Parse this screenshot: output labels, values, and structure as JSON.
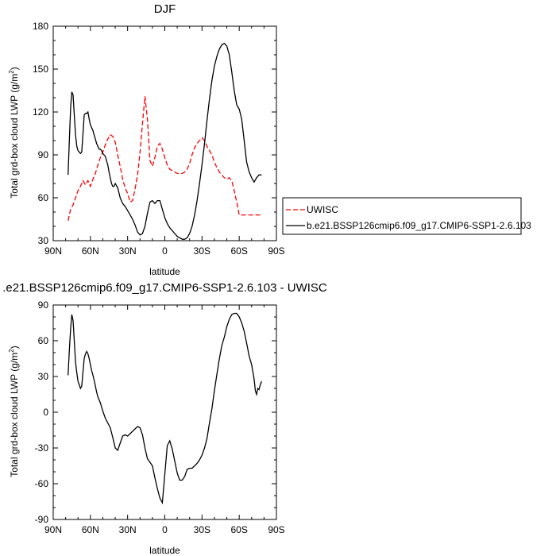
{
  "chart_data": [
    {
      "type": "line",
      "title": "DJF",
      "xlabel": "latitude",
      "ylabel_main": "Total grd-box cloud LWP (g/m",
      "ylabel_sup": "2",
      "ylabel_end": ")",
      "xlim": [
        90,
        -90
      ],
      "ylim": [
        30,
        180
      ],
      "x_ticks": [
        90,
        60,
        30,
        0,
        -30,
        -60,
        -90
      ],
      "x_tick_labels": [
        "90N",
        "60N",
        "30N",
        "0",
        "30S",
        "60S",
        "90S"
      ],
      "y_ticks": [
        30,
        60,
        90,
        120,
        150,
        180
      ],
      "y_tick_labels": [
        "30",
        "60",
        "90",
        "120",
        "150",
        "180"
      ],
      "legend_position": "right",
      "series": [
        {
          "name": "UWISC",
          "color": "#ff0000",
          "dash": "dashed",
          "x": [
            78,
            76,
            74,
            72,
            70,
            68,
            66,
            64,
            62,
            60,
            58,
            56,
            54,
            52,
            50,
            48,
            46,
            44,
            42,
            40,
            38,
            36,
            34,
            32,
            30,
            28,
            26,
            24,
            22,
            20,
            18,
            16,
            14,
            12,
            10,
            8,
            6,
            4,
            2,
            0,
            -2,
            -4,
            -6,
            -8,
            -10,
            -12,
            -14,
            -16,
            -18,
            -20,
            -22,
            -24,
            -26,
            -28,
            -30,
            -32,
            -34,
            -36,
            -38,
            -40,
            -42,
            -44,
            -46,
            -48,
            -50,
            -52,
            -54,
            -56,
            -58,
            -60,
            -62,
            -64,
            -66,
            -68,
            -70,
            -72,
            -74,
            -76,
            -78
          ],
          "y": [
            44,
            52,
            55,
            60,
            65,
            68,
            72,
            69,
            72,
            68,
            73,
            77,
            83,
            88,
            92,
            97,
            101,
            104,
            103,
            99,
            90,
            82,
            73,
            67,
            63,
            57,
            58,
            66,
            76,
            92,
            112,
            131,
            115,
            86,
            82,
            88,
            96,
            98,
            94,
            88,
            83,
            80,
            79,
            78,
            77,
            77,
            77,
            78,
            80,
            84,
            90,
            95,
            98,
            100,
            102,
            100,
            96,
            93,
            90,
            85,
            81,
            78,
            76,
            74,
            73,
            74,
            72,
            65,
            57,
            48,
            48,
            48,
            48,
            48,
            48,
            48,
            48,
            48,
            48
          ]
        },
        {
          "name": "b.e21.BSSP126cmip6.f09_g17.CMIP6-SSP1-2.6.103",
          "color": "#000000",
          "dash": "solid",
          "x": [
            78,
            77,
            76,
            75,
            74,
            73,
            72,
            71,
            70,
            69,
            68,
            67,
            66,
            65,
            64,
            63,
            62,
            61,
            60,
            59,
            58,
            57,
            56,
            55,
            54,
            53,
            52,
            51,
            50,
            49,
            48,
            47,
            46,
            45,
            44,
            43,
            42,
            41,
            40,
            38,
            36,
            34,
            32,
            30,
            28,
            26,
            24,
            22,
            20,
            18,
            16,
            14,
            12,
            10,
            8,
            6,
            4,
            2,
            0,
            -2,
            -4,
            -6,
            -8,
            -10,
            -12,
            -14,
            -16,
            -18,
            -20,
            -22,
            -24,
            -26,
            -28,
            -30,
            -32,
            -34,
            -36,
            -38,
            -40,
            -42,
            -44,
            -46,
            -48,
            -50,
            -52,
            -54,
            -56,
            -58,
            -60,
            -62,
            -64,
            -66,
            -68,
            -70,
            -72,
            -74,
            -76,
            -77,
            -78
          ],
          "y": [
            76,
            100,
            123,
            134,
            132,
            118,
            104,
            96,
            93,
            92,
            91,
            92,
            105,
            118,
            119,
            119,
            120,
            115,
            111,
            109,
            107,
            104,
            101,
            98,
            96,
            94,
            94,
            93,
            91,
            90,
            89,
            86,
            83,
            78,
            74,
            70,
            68,
            68,
            70,
            67,
            60,
            56,
            54,
            51,
            48,
            45,
            41,
            36,
            34,
            35,
            40,
            49,
            57,
            58,
            56,
            58,
            58,
            52,
            46,
            42,
            39,
            37,
            35,
            33,
            32,
            31,
            31,
            32,
            35,
            40,
            48,
            58,
            70,
            83,
            98,
            114,
            129,
            142,
            152,
            159,
            164,
            167,
            168,
            166,
            160,
            148,
            135,
            125,
            122,
            115,
            100,
            85,
            78,
            74,
            71,
            74,
            76,
            76,
            76
          ]
        }
      ]
    },
    {
      "type": "line",
      "title": ".e21.BSSP126cmip6.f09_g17.CMIP6-SSP1-2.6.103 - UWISC",
      "xlabel": "latitude",
      "ylabel_main": "Total grd-box cloud LWP (g/m",
      "ylabel_sup": "2",
      "ylabel_end": ")",
      "xlim": [
        90,
        -90
      ],
      "ylim": [
        -90,
        90
      ],
      "x_ticks": [
        90,
        60,
        30,
        0,
        -30,
        -60,
        -90
      ],
      "x_tick_labels": [
        "90N",
        "60N",
        "30N",
        "0",
        "30S",
        "60S",
        "90S"
      ],
      "y_ticks": [
        -90,
        -60,
        -30,
        0,
        30,
        60,
        90
      ],
      "y_tick_labels": [
        "-90",
        "-60",
        "-30",
        "0",
        "30",
        "60",
        "90"
      ],
      "series": [
        {
          "color": "#000000",
          "dash": "solid",
          "x": [
            78,
            77,
            76,
            75,
            74,
            73,
            72,
            71,
            70,
            69,
            68,
            67,
            66,
            65,
            64,
            63,
            62,
            61,
            60,
            59,
            58,
            57,
            56,
            55,
            54,
            52,
            50,
            48,
            46,
            44,
            42,
            40,
            38,
            36,
            34,
            32,
            30,
            28,
            26,
            24,
            22,
            20,
            18,
            16,
            14,
            12,
            10,
            8,
            6,
            4,
            2,
            0,
            -2,
            -4,
            -6,
            -8,
            -10,
            -12,
            -14,
            -16,
            -18,
            -20,
            -22,
            -24,
            -26,
            -28,
            -30,
            -32,
            -34,
            -36,
            -38,
            -40,
            -42,
            -44,
            -46,
            -48,
            -50,
            -52,
            -54,
            -56,
            -58,
            -60,
            -62,
            -64,
            -66,
            -68,
            -70,
            -72,
            -73,
            -74,
            -75,
            -76,
            -77,
            -78
          ],
          "y": [
            31,
            52,
            70,
            82,
            77,
            60,
            42,
            33,
            26,
            23,
            20,
            22,
            34,
            45,
            49,
            51,
            49,
            45,
            40,
            35,
            31,
            27,
            22,
            17,
            13,
            8,
            1,
            -5,
            -9,
            -13,
            -21,
            -30,
            -32,
            -26,
            -20,
            -19,
            -20,
            -18,
            -16,
            -14,
            -12,
            -13,
            -19,
            -30,
            -39,
            -42,
            -45,
            -55,
            -64,
            -72,
            -76,
            -52,
            -28,
            -24,
            -31,
            -41,
            -51,
            -57,
            -57,
            -54,
            -48,
            -47,
            -47,
            -45,
            -43,
            -40,
            -36,
            -30,
            -22,
            -9,
            3,
            18,
            32,
            45,
            56,
            63,
            72,
            78,
            82,
            83,
            83,
            80,
            75,
            68,
            58,
            47,
            40,
            28,
            18,
            15,
            20,
            19,
            23,
            26
          ]
        }
      ]
    }
  ]
}
